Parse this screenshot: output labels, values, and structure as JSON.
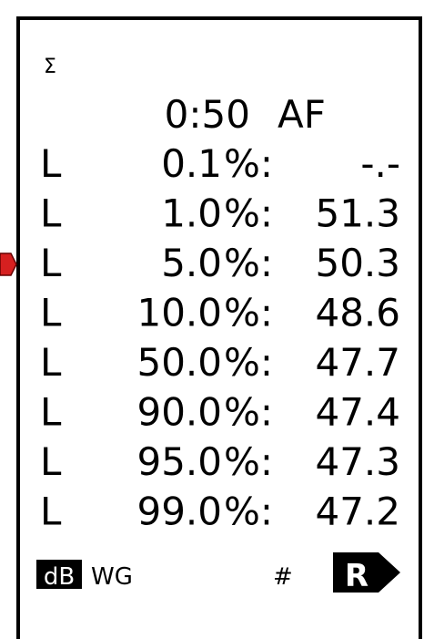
{
  "display": {
    "symbol": "Σ",
    "header": {
      "time": "0:50",
      "mode": "AF"
    },
    "rows": [
      {
        "prefix": "L",
        "percent": "0.1",
        "suffix": "%:",
        "value": "-.-"
      },
      {
        "prefix": "L",
        "percent": "1.0",
        "suffix": "%:",
        "value": 51.3
      },
      {
        "prefix": "L",
        "percent": "5.0",
        "suffix": "%:",
        "value": 50.3
      },
      {
        "prefix": "L",
        "percent": "10.0",
        "suffix": "%:",
        "value": 48.6
      },
      {
        "prefix": "L",
        "percent": "50.0",
        "suffix": "%:",
        "value": 47.7
      },
      {
        "prefix": "L",
        "percent": "90.0",
        "suffix": "%:",
        "value": 47.4
      },
      {
        "prefix": "L",
        "percent": "95.0",
        "suffix": "%:",
        "value": 47.3
      },
      {
        "prefix": "L",
        "percent": "99.0",
        "suffix": "%:",
        "value": 47.2
      }
    ],
    "footer": {
      "unit": "dB",
      "weighting": "WG",
      "hash": "#",
      "indicator": "R"
    }
  }
}
